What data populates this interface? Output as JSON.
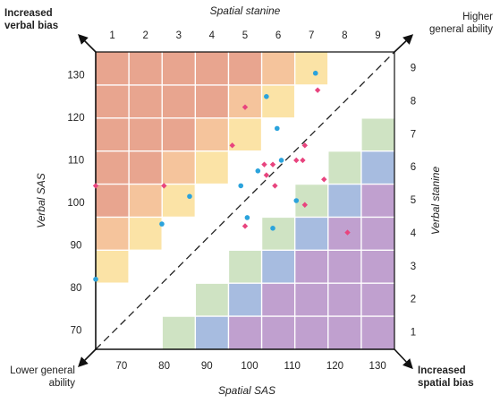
{
  "chart_data": {
    "type": "scatter",
    "title": "",
    "top_axis": {
      "label": "Spatial stanine",
      "ticks": [
        "1",
        "2",
        "3",
        "4",
        "5",
        "6",
        "7",
        "8",
        "9"
      ]
    },
    "bottom_axis": {
      "label": "Spatial SAS",
      "ticks": [
        "70",
        "80",
        "90",
        "100",
        "110",
        "120",
        "130"
      ],
      "range": [
        65,
        135
      ]
    },
    "left_axis": {
      "label": "Verbal SAS",
      "ticks": [
        "70",
        "80",
        "90",
        "100",
        "110",
        "120",
        "130"
      ],
      "range": [
        65,
        135
      ]
    },
    "right_axis": {
      "label": "Verbal stanine",
      "ticks": [
        "1",
        "2",
        "3",
        "4",
        "5",
        "6",
        "7",
        "8",
        "9"
      ]
    },
    "corner_labels": {
      "top_left": [
        "Increased",
        "verbal bias"
      ],
      "top_right": [
        "Higher",
        "general ability"
      ],
      "bottom_left": [
        "Lower general",
        "ability"
      ],
      "bottom_right": [
        "Increased",
        "spatial bias"
      ]
    },
    "diagonal": {
      "style": "dashed",
      "from": [
        65,
        65
      ],
      "to": [
        135,
        135
      ]
    },
    "colors": {
      "verbal_bias_4": "#e8a58f",
      "verbal_bias_3": "#f5c49c",
      "verbal_bias_2": "#fbe3a6",
      "neutral": "#ffffff",
      "spatial_bias_2": "#cfe3c3",
      "spatial_bias_3": "#a7bce0",
      "spatial_bias_4": "#c0a0cf",
      "series_blue": "#2ba3dc",
      "series_pink": "#e8447e"
    },
    "series": [
      {
        "marker": "circle",
        "color": "#2ba3dc",
        "points": [
          {
            "x": 116.5,
            "y": 130
          },
          {
            "x": 105,
            "y": 124.5
          },
          {
            "x": 107.5,
            "y": 117
          },
          {
            "x": 108.5,
            "y": 109.5
          },
          {
            "x": 103,
            "y": 107
          },
          {
            "x": 99,
            "y": 103.5
          },
          {
            "x": 87,
            "y": 101
          },
          {
            "x": 112,
            "y": 100
          },
          {
            "x": 100.5,
            "y": 96
          },
          {
            "x": 80.5,
            "y": 94.5
          },
          {
            "x": 106.5,
            "y": 93.5
          },
          {
            "x": 65,
            "y": 81.5
          }
        ]
      },
      {
        "marker": "diamond",
        "color": "#e8447e",
        "points": [
          {
            "x": 117,
            "y": 126
          },
          {
            "x": 100,
            "y": 122
          },
          {
            "x": 97,
            "y": 113
          },
          {
            "x": 114,
            "y": 113
          },
          {
            "x": 104.5,
            "y": 108.5
          },
          {
            "x": 106.5,
            "y": 108.5
          },
          {
            "x": 112,
            "y": 109.5
          },
          {
            "x": 113.5,
            "y": 109.5
          },
          {
            "x": 105,
            "y": 106
          },
          {
            "x": 118.5,
            "y": 105
          },
          {
            "x": 81,
            "y": 103.5
          },
          {
            "x": 65,
            "y": 103.5
          },
          {
            "x": 107,
            "y": 103.5
          },
          {
            "x": 114,
            "y": 99
          },
          {
            "x": 100,
            "y": 94
          },
          {
            "x": 124,
            "y": 92.5
          }
        ]
      }
    ]
  }
}
